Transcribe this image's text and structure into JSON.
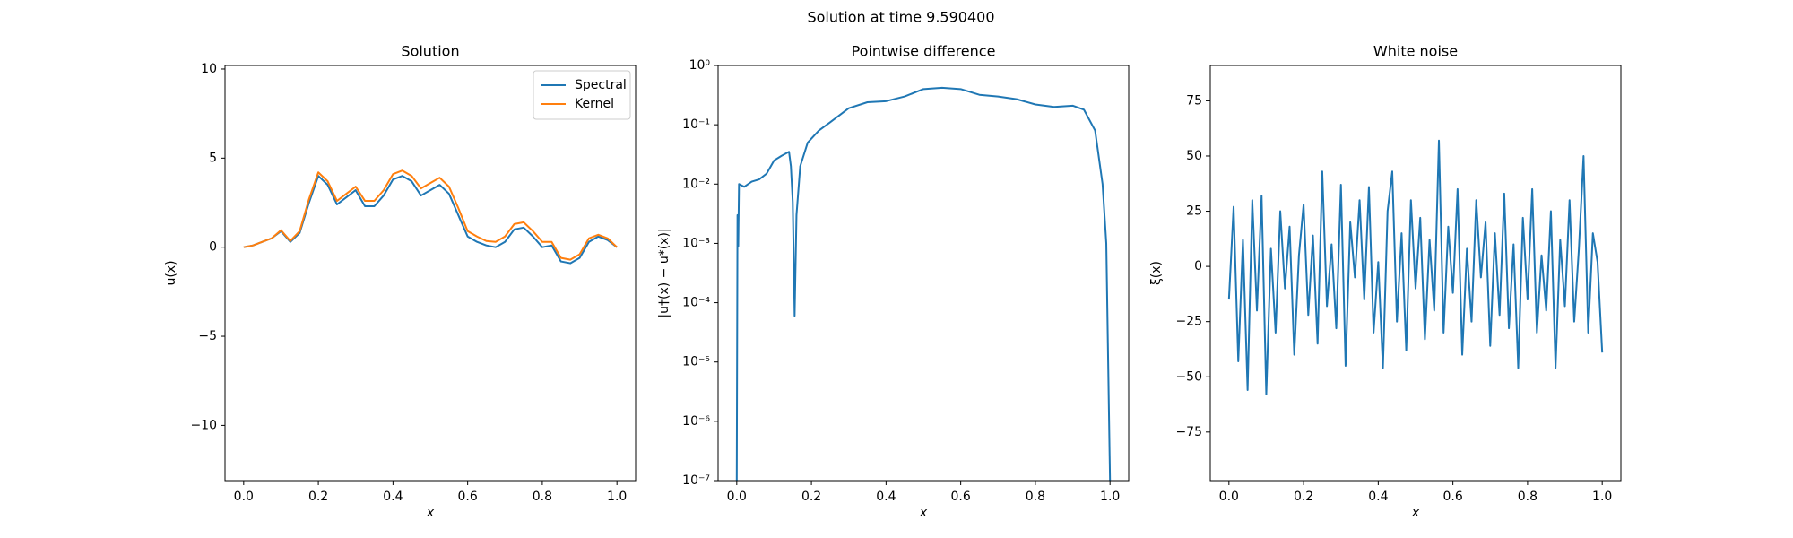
{
  "title": "Solution at time 9.590400",
  "chart_data": [
    {
      "type": "line",
      "title": "Solution",
      "xlabel": "x",
      "ylabel": "u(x)",
      "xlim": [
        -0.05,
        1.05
      ],
      "ylim": [
        -13.1,
        10.2
      ],
      "xticks": [
        {
          "value": 0,
          "label": "0.0"
        },
        0.2,
        0.4,
        0.6,
        0.8,
        {
          "value": 1,
          "label": "1.0"
        }
      ],
      "yticks": [
        {
          "value": -10,
          "label": "−10"
        },
        {
          "value": -5,
          "label": "−5"
        },
        0,
        5,
        10
      ],
      "legend": "upper right",
      "x": [
        0,
        0.025,
        0.05,
        0.075,
        0.1,
        0.125,
        0.15,
        0.175,
        0.2,
        0.225,
        0.25,
        0.275,
        0.3,
        0.325,
        0.35,
        0.375,
        0.4,
        0.425,
        0.45,
        0.475,
        0.5,
        0.525,
        0.55,
        0.575,
        0.6,
        0.625,
        0.65,
        0.675,
        0.7,
        0.725,
        0.75,
        0.775,
        0.8,
        0.825,
        0.85,
        0.875,
        0.9,
        0.925,
        0.95,
        0.975,
        1
      ],
      "series": [
        {
          "name": "Spectral",
          "color": "#1f77b4",
          "values": [
            0,
            0.1,
            0.3,
            0.5,
            0.9,
            0.3,
            0.8,
            2.5,
            4.0,
            3.5,
            2.4,
            2.8,
            3.2,
            2.3,
            2.3,
            2.9,
            3.8,
            4.0,
            3.7,
            2.9,
            3.2,
            3.5,
            3.0,
            1.8,
            0.6,
            0.3,
            0.1,
            0.0,
            0.3,
            1.0,
            1.1,
            0.6,
            0.0,
            0.1,
            -0.8,
            -0.9,
            -0.6,
            0.3,
            0.6,
            0.4,
            0
          ]
        },
        {
          "name": "Kernel",
          "color": "#ff7f0e",
          "values": [
            0,
            0.1,
            0.3,
            0.5,
            0.95,
            0.35,
            0.9,
            2.7,
            4.2,
            3.7,
            2.6,
            3.0,
            3.4,
            2.6,
            2.6,
            3.2,
            4.1,
            4.3,
            4.0,
            3.3,
            3.6,
            3.9,
            3.4,
            2.2,
            0.9,
            0.6,
            0.35,
            0.3,
            0.6,
            1.3,
            1.4,
            0.9,
            0.3,
            0.3,
            -0.6,
            -0.7,
            -0.4,
            0.5,
            0.7,
            0.5,
            0
          ]
        }
      ]
    },
    {
      "type": "line",
      "title": "Pointwise difference",
      "xlabel": "x",
      "ylabel": "|u†(x) − u*(x)|",
      "yscale": "log",
      "xlim": [
        -0.05,
        1.05
      ],
      "ylim": [
        1e-07,
        1
      ],
      "xticks": [
        {
          "value": 0,
          "label": "0.0"
        },
        0.2,
        0.4,
        0.6,
        0.8,
        {
          "value": 1,
          "label": "1.0"
        }
      ],
      "yticks": [
        {
          "value": 1e-07,
          "label": "10⁻⁷"
        },
        {
          "value": 1e-06,
          "label": "10⁻⁶"
        },
        {
          "value": 1e-05,
          "label": "10⁻⁵"
        },
        {
          "value": 0.0001,
          "label": "10⁻⁴"
        },
        {
          "value": 0.001,
          "label": "10⁻³"
        },
        {
          "value": 0.01,
          "label": "10⁻²"
        },
        {
          "value": 0.1,
          "label": "10⁻¹"
        },
        {
          "value": 1,
          "label": "10⁰"
        }
      ],
      "x": [
        0,
        0.002,
        0.004,
        0.006,
        0.02,
        0.04,
        0.06,
        0.08,
        0.1,
        0.12,
        0.14,
        0.145,
        0.15,
        0.155,
        0.16,
        0.17,
        0.19,
        0.22,
        0.25,
        0.3,
        0.35,
        0.4,
        0.45,
        0.5,
        0.55,
        0.6,
        0.65,
        0.7,
        0.75,
        0.8,
        0.85,
        0.9,
        0.93,
        0.96,
        0.98,
        0.99,
        0.995,
        1
      ],
      "series": [
        {
          "color": "#1f77b4",
          "values": [
            1e-07,
            0.003,
            0.0009,
            0.01,
            0.009,
            0.011,
            0.012,
            0.015,
            0.025,
            0.03,
            0.035,
            0.02,
            0.005,
            6e-05,
            0.003,
            0.02,
            0.05,
            0.08,
            0.11,
            0.19,
            0.24,
            0.25,
            0.3,
            0.4,
            0.42,
            0.4,
            0.32,
            0.3,
            0.27,
            0.22,
            0.2,
            0.21,
            0.18,
            0.08,
            0.01,
            0.001,
            1e-05,
            1e-07
          ]
        }
      ]
    },
    {
      "type": "line",
      "title": "White noise",
      "xlabel": "x",
      "ylabel": "ξ(x)",
      "xlim": [
        -0.05,
        1.05
      ],
      "ylim": [
        -97,
        91
      ],
      "xticks": [
        {
          "value": 0,
          "label": "0.0"
        },
        0.2,
        0.4,
        0.6,
        0.8,
        {
          "value": 1,
          "label": "1.0"
        }
      ],
      "yticks": [
        {
          "value": -75,
          "label": "−75"
        },
        {
          "value": -50,
          "label": "−50"
        },
        {
          "value": -25,
          "label": "−25"
        },
        0,
        25,
        50,
        75
      ],
      "x": [
        0,
        0.0125,
        0.025,
        0.0375,
        0.05,
        0.0625,
        0.075,
        0.0875,
        0.1,
        0.1125,
        0.125,
        0.1375,
        0.15,
        0.1625,
        0.175,
        0.1875,
        0.2,
        0.2125,
        0.225,
        0.2375,
        0.25,
        0.2625,
        0.275,
        0.2875,
        0.3,
        0.3125,
        0.325,
        0.3375,
        0.35,
        0.3625,
        0.375,
        0.3875,
        0.4,
        0.4125,
        0.425,
        0.4375,
        0.45,
        0.4625,
        0.475,
        0.4875,
        0.5,
        0.5125,
        0.525,
        0.5375,
        0.55,
        0.5625,
        0.575,
        0.5875,
        0.6,
        0.6125,
        0.625,
        0.6375,
        0.65,
        0.6625,
        0.675,
        0.6875,
        0.7,
        0.7125,
        0.725,
        0.7375,
        0.75,
        0.7625,
        0.775,
        0.7875,
        0.8,
        0.8125,
        0.825,
        0.8375,
        0.85,
        0.8625,
        0.875,
        0.8875,
        0.9,
        0.9125,
        0.925,
        0.9375,
        0.95,
        0.9625,
        0.975,
        0.9875,
        1
      ],
      "series": [
        {
          "color": "#1f77b4",
          "values": [
            -15,
            27,
            -43,
            12,
            -56,
            30,
            -20,
            32,
            -58,
            8,
            -30,
            25,
            -10,
            18,
            -40,
            5,
            28,
            -22,
            14,
            -35,
            43,
            -18,
            10,
            -28,
            37,
            -45,
            20,
            -5,
            30,
            -15,
            36,
            -30,
            2,
            -46,
            25,
            43,
            -25,
            15,
            -38,
            30,
            -10,
            22,
            -33,
            12,
            -20,
            57,
            -30,
            18,
            -12,
            35,
            -40,
            8,
            -25,
            30,
            -5,
            20,
            -36,
            15,
            -22,
            33,
            -28,
            10,
            -46,
            22,
            -15,
            35,
            -30,
            5,
            -20,
            25,
            -46,
            12,
            -18,
            30,
            -25,
            8,
            50,
            -30,
            15,
            2,
            -39
          ]
        }
      ]
    }
  ]
}
